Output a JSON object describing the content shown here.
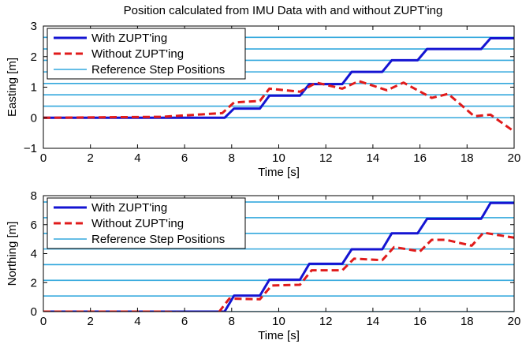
{
  "figure": {
    "title": "Position calculated from IMU Data with and without ZUPT'ing"
  },
  "colors": {
    "with_zupt": "#1414d2",
    "without_zupt": "#e01b1b",
    "reference": "#33a8dd",
    "axes": "#000000",
    "background": "#ffffff"
  },
  "chart_data": [
    {
      "type": "line",
      "title": "Position calculated from IMU Data with and without ZUPT'ing",
      "xlabel": "Time [s]",
      "ylabel": "Easting [m]",
      "xlim": [
        0,
        20
      ],
      "ylim": [
        -1,
        3
      ],
      "xticks": [
        "0",
        "2",
        "4",
        "6",
        "8",
        "10",
        "12",
        "14",
        "16",
        "18",
        "20"
      ],
      "yticks": [
        "−1",
        "0",
        "1",
        "2",
        "3"
      ],
      "legend": {
        "placement": "top-left",
        "entries": [
          "With ZUPT'ing",
          "Without ZUPT'ing",
          "Reference Step Positions"
        ]
      },
      "reference_lines": [
        0,
        0.38,
        0.75,
        1.12,
        1.5,
        1.88,
        2.25,
        2.63
      ],
      "series": [
        {
          "name": "With ZUPT'ing",
          "style": "solid",
          "x": [
            0,
            7.7,
            8.1,
            9.2,
            9.6,
            10.9,
            11.3,
            12.7,
            13.1,
            14.4,
            14.8,
            15.9,
            16.3,
            17.1,
            17.5,
            18.6,
            19.0,
            20.0
          ],
          "y": [
            0,
            0,
            0.3,
            0.3,
            0.72,
            0.72,
            1.1,
            1.1,
            1.5,
            1.5,
            1.88,
            1.88,
            2.25,
            2.25,
            2.25,
            2.25,
            2.6,
            2.6
          ]
        },
        {
          "name": "Without ZUPT'ing",
          "style": "dashed",
          "x": [
            0,
            5.0,
            7.6,
            8.1,
            9.2,
            9.6,
            10.9,
            11.6,
            12.7,
            13.4,
            14.6,
            15.3,
            16.5,
            17.2,
            18.3,
            19.0,
            20.0
          ],
          "y": [
            0,
            0.03,
            0.15,
            0.5,
            0.55,
            0.95,
            0.85,
            1.15,
            0.95,
            1.2,
            0.9,
            1.15,
            0.65,
            0.78,
            0.05,
            0.1,
            -0.45
          ]
        }
      ]
    },
    {
      "type": "line",
      "xlabel": "Time [s]",
      "ylabel": "Northing [m]",
      "xlim": [
        0,
        20
      ],
      "ylim": [
        0,
        8
      ],
      "xticks": [
        "0",
        "2",
        "4",
        "6",
        "8",
        "10",
        "12",
        "14",
        "16",
        "18",
        "20"
      ],
      "yticks": [
        "0",
        "2",
        "4",
        "6",
        "8"
      ],
      "legend": {
        "placement": "top-left",
        "entries": [
          "With ZUPT'ing",
          "Without ZUPT'ing",
          "Reference Step Positions"
        ]
      },
      "reference_lines": [
        0,
        1.08,
        2.16,
        3.24,
        4.32,
        5.4,
        6.48,
        7.56
      ],
      "series": [
        {
          "name": "With ZUPT'ing",
          "style": "solid",
          "x": [
            0,
            7.7,
            8.1,
            9.2,
            9.6,
            10.9,
            11.3,
            12.7,
            13.1,
            14.4,
            14.8,
            15.9,
            16.3,
            17.1,
            17.5,
            18.6,
            19.0,
            20.0
          ],
          "y": [
            0,
            0,
            1.1,
            1.1,
            2.2,
            2.2,
            3.3,
            3.3,
            4.3,
            4.3,
            5.4,
            5.4,
            6.4,
            6.4,
            6.4,
            6.4,
            7.5,
            7.5
          ]
        },
        {
          "name": "Without ZUPT'ing",
          "style": "dashed",
          "x": [
            0,
            5.0,
            7.4,
            7.9,
            9.2,
            9.7,
            10.9,
            11.4,
            12.7,
            13.2,
            14.4,
            14.9,
            16.0,
            16.5,
            17.1,
            18.2,
            18.7,
            20.0
          ],
          "y": [
            0,
            0,
            -0.15,
            0.9,
            0.85,
            1.8,
            1.85,
            2.85,
            2.85,
            3.65,
            3.55,
            4.45,
            4.15,
            4.95,
            4.95,
            4.55,
            5.45,
            5.1
          ]
        }
      ]
    }
  ]
}
